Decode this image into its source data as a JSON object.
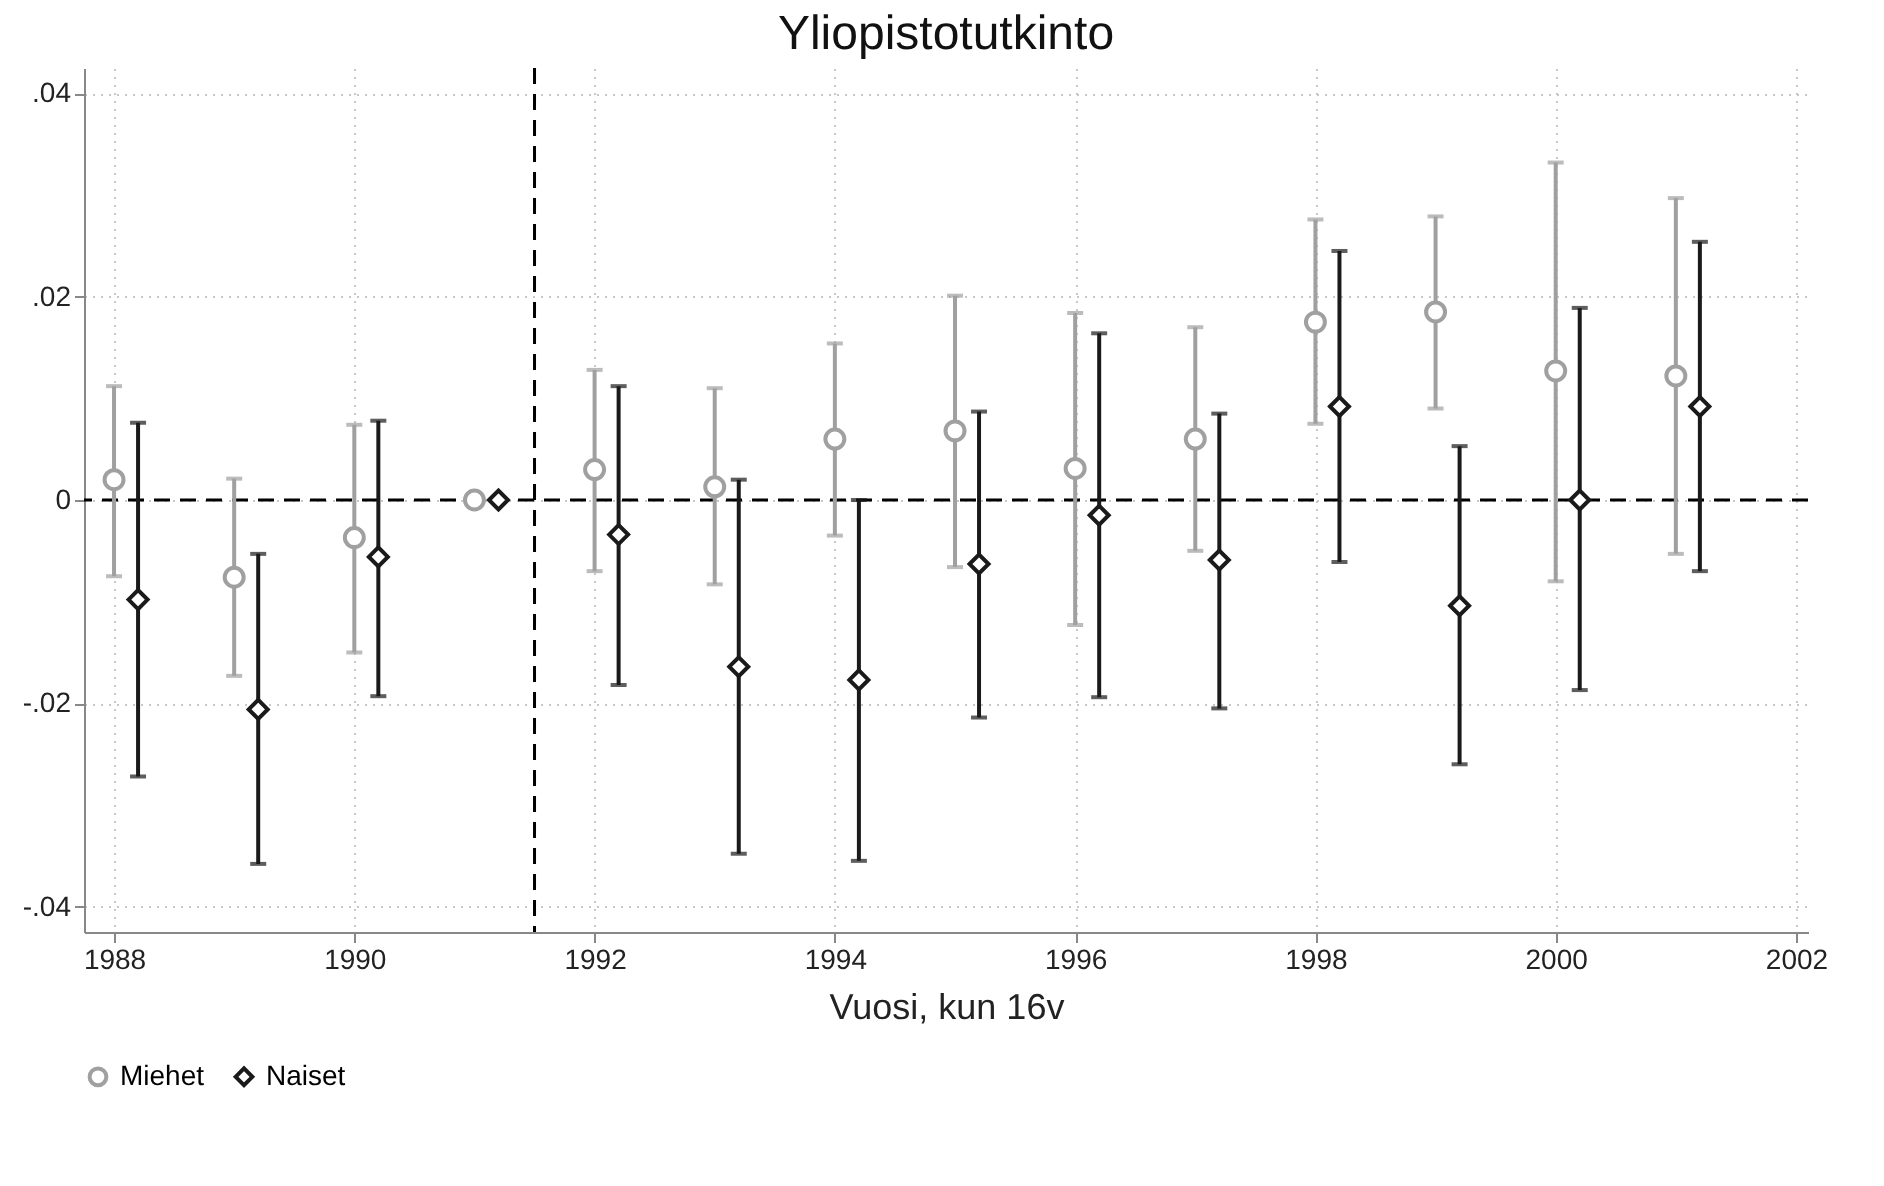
{
  "chart_data": {
    "type": "scatter",
    "title": "Yliopistotutkinto",
    "xlabel": "Vuosi, kun 16v",
    "xlim": [
      1987.75,
      2002.1
    ],
    "xticks": [
      1988,
      1990,
      1992,
      1994,
      1996,
      1998,
      2000,
      2002
    ],
    "ylim": [
      -0.0425,
      0.0425
    ],
    "yticks": [
      {
        "value": -0.04,
        "label": "-.04"
      },
      {
        "value": -0.02,
        "label": "-.02"
      },
      0,
      {
        "value": 0.02,
        "label": ".02"
      },
      {
        "value": 0.04,
        "label": ".04"
      }
    ],
    "grid": true,
    "legend": "bottom",
    "series": [
      {
        "name": "Miehet",
        "color": "#a0a0a0",
        "marker": "circle",
        "x": [
          1988,
          1989,
          1990,
          1991,
          1992,
          1993,
          1994,
          1995,
          1996,
          1997,
          1998,
          1999,
          2000,
          2001
        ],
        "values": [
          0.002,
          -0.0076,
          -0.0037,
          0,
          0.003,
          0.0013,
          0.006,
          0.0068,
          0.0031,
          0.006,
          0.0175,
          0.0185,
          0.0127,
          0.0122
        ],
        "errors": [
          [
            -0.0075,
            0.0112
          ],
          [
            -0.0173,
            0.0021
          ],
          [
            -0.015,
            0.0074
          ],
          null,
          [
            -0.007,
            0.0128
          ],
          [
            -0.0083,
            0.011
          ],
          [
            -0.0035,
            0.0154
          ],
          [
            -0.0066,
            0.0201
          ],
          [
            -0.0123,
            0.0184
          ],
          [
            -0.005,
            0.017
          ],
          [
            0.0075,
            0.0276
          ],
          [
            0.009,
            0.0279
          ],
          [
            -0.008,
            0.0332
          ],
          [
            -0.0053,
            0.0297
          ]
        ]
      },
      {
        "name": "Naiset",
        "color": "#1a1a1a",
        "marker": "diamond",
        "x": [
          1988.2,
          1989.2,
          1990.2,
          1991.2,
          1992.2,
          1993.2,
          1994.2,
          1995.2,
          1996.2,
          1997.2,
          1998.2,
          1999.2,
          2000.2,
          2001.2
        ],
        "values": [
          -0.0098,
          -0.0206,
          -0.0056,
          0,
          -0.0034,
          -0.0164,
          -0.0177,
          -0.0063,
          -0.0015,
          -0.0059,
          0.0092,
          -0.0104,
          0,
          0.0092
        ],
        "errors": [
          [
            -0.0272,
            0.0076
          ],
          [
            -0.0358,
            -0.0053
          ],
          [
            -0.0193,
            0.0078
          ],
          null,
          [
            -0.0182,
            0.0112
          ],
          [
            -0.0348,
            0.002
          ],
          [
            -0.0355,
            0
          ],
          [
            -0.0214,
            0.0087
          ],
          [
            -0.0194,
            0.0164
          ],
          [
            -0.0205,
            0.0085
          ],
          [
            -0.0061,
            0.0245
          ],
          [
            -0.026,
            0.0053
          ],
          [
            -0.0187,
            0.0189
          ],
          [
            -0.007,
            0.0254
          ]
        ]
      }
    ],
    "ref_lines": [
      {
        "axis": "x",
        "value": 1991.5,
        "color": "#000000",
        "line_style": "dashed"
      },
      {
        "axis": "y",
        "value": 0,
        "color": "#000000",
        "line_style": "dashed"
      }
    ]
  }
}
